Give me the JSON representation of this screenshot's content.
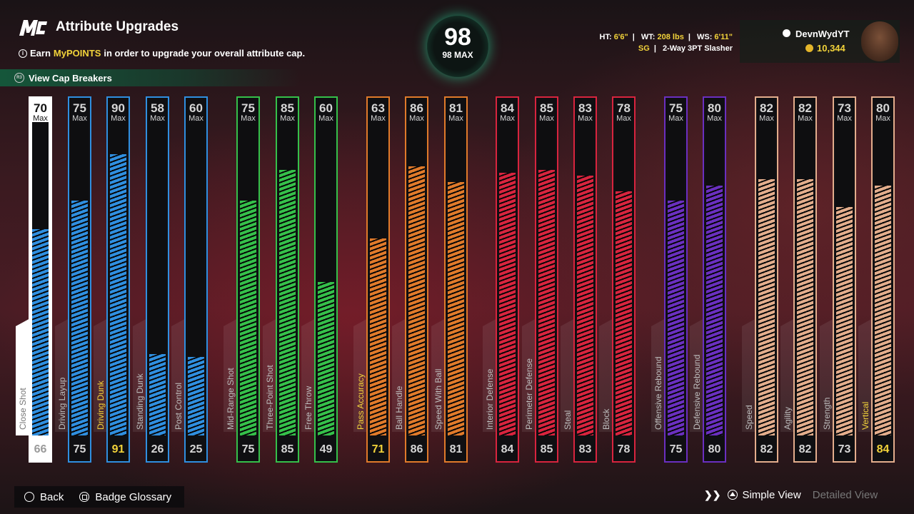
{
  "header": {
    "logo": "MC",
    "title": "Attribute Upgrades",
    "subtitle_pre": "Earn ",
    "subtitle_hl": "MyPOINTS",
    "subtitle_post": " in order to upgrade your overall attribute cap.",
    "cap_breakers": "View Cap Breakers",
    "cap_breakers_btn": "R3"
  },
  "overall": {
    "value": "98",
    "label": "98 MAX",
    "accent": "#1ff0a8"
  },
  "player": {
    "ht_label": "HT:",
    "ht": "6'6\"",
    "wt_label": "WT:",
    "wt": "208 lbs",
    "ws_label": "WS:",
    "ws": "6'11\"",
    "position": "SG",
    "archetype": "2-Way 3PT Slasher",
    "username": "DevnWydYT",
    "coins": "10,344"
  },
  "attributes": [
    {
      "name": "Close Shot",
      "cap": 70,
      "max_label": "Max",
      "current": 66,
      "color": "#2f8fe0",
      "selected": true
    },
    {
      "name": "Driving Layup",
      "cap": 75,
      "max_label": "Max",
      "current": 75,
      "color": "#2f8fe0"
    },
    {
      "name": "Driving Dunk",
      "cap": 90,
      "max_label": "Max",
      "current": 91,
      "color": "#2f8fe0",
      "highlight": true
    },
    {
      "name": "Standing Dunk",
      "cap": 58,
      "max_label": "Max",
      "current": 26,
      "color": "#2f8fe0"
    },
    {
      "name": "Post Control",
      "cap": 60,
      "max_label": "Max",
      "current": 25,
      "color": "#2f8fe0"
    },
    {
      "name": "Mid-Range Shot",
      "cap": 75,
      "max_label": "Max",
      "current": 75,
      "color": "#35c04a"
    },
    {
      "name": "Three-Point Shot",
      "cap": 85,
      "max_label": "Max",
      "current": 85,
      "color": "#35c04a"
    },
    {
      "name": "Free Throw",
      "cap": 60,
      "max_label": "Max",
      "current": 49,
      "color": "#35c04a"
    },
    {
      "name": "Pass Accuracy",
      "cap": 63,
      "max_label": "Max",
      "current": 71,
      "color": "#e07a2a",
      "highlight": true
    },
    {
      "name": "Ball Handle",
      "cap": 86,
      "max_label": "Max",
      "current": 86,
      "color": "#e07a2a"
    },
    {
      "name": "Speed With Ball",
      "cap": 81,
      "max_label": "Max",
      "current": 81,
      "color": "#e07a2a"
    },
    {
      "name": "Interior Defense",
      "cap": 84,
      "max_label": "Max",
      "current": 84,
      "color": "#d8243e"
    },
    {
      "name": "Perimeter Defense",
      "cap": 85,
      "max_label": "Max",
      "current": 85,
      "color": "#d8243e"
    },
    {
      "name": "Steal",
      "cap": 83,
      "max_label": "Max",
      "current": 83,
      "color": "#d8243e"
    },
    {
      "name": "Block",
      "cap": 78,
      "max_label": "Max",
      "current": 78,
      "color": "#d8243e"
    },
    {
      "name": "Offensive Rebound",
      "cap": 75,
      "max_label": "Max",
      "current": 75,
      "color": "#6a2fc0"
    },
    {
      "name": "Defensive Rebound",
      "cap": 80,
      "max_label": "Max",
      "current": 80,
      "color": "#6a2fc0"
    },
    {
      "name": "Speed",
      "cap": 82,
      "max_label": "Max",
      "current": 82,
      "color": "#e3ad8c"
    },
    {
      "name": "Agility",
      "cap": 82,
      "max_label": "Max",
      "current": 82,
      "color": "#e3ad8c"
    },
    {
      "name": "Strength",
      "cap": 73,
      "max_label": "Max",
      "current": 73,
      "color": "#e3ad8c"
    },
    {
      "name": "Vertical",
      "cap": 80,
      "max_label": "Max",
      "current": 84,
      "color": "#e3ad8c",
      "highlight": true
    }
  ],
  "footer": {
    "back": "Back",
    "badge_glossary": "Badge Glossary",
    "simple_view": "Simple View",
    "detailed_view": "Detailed View"
  }
}
